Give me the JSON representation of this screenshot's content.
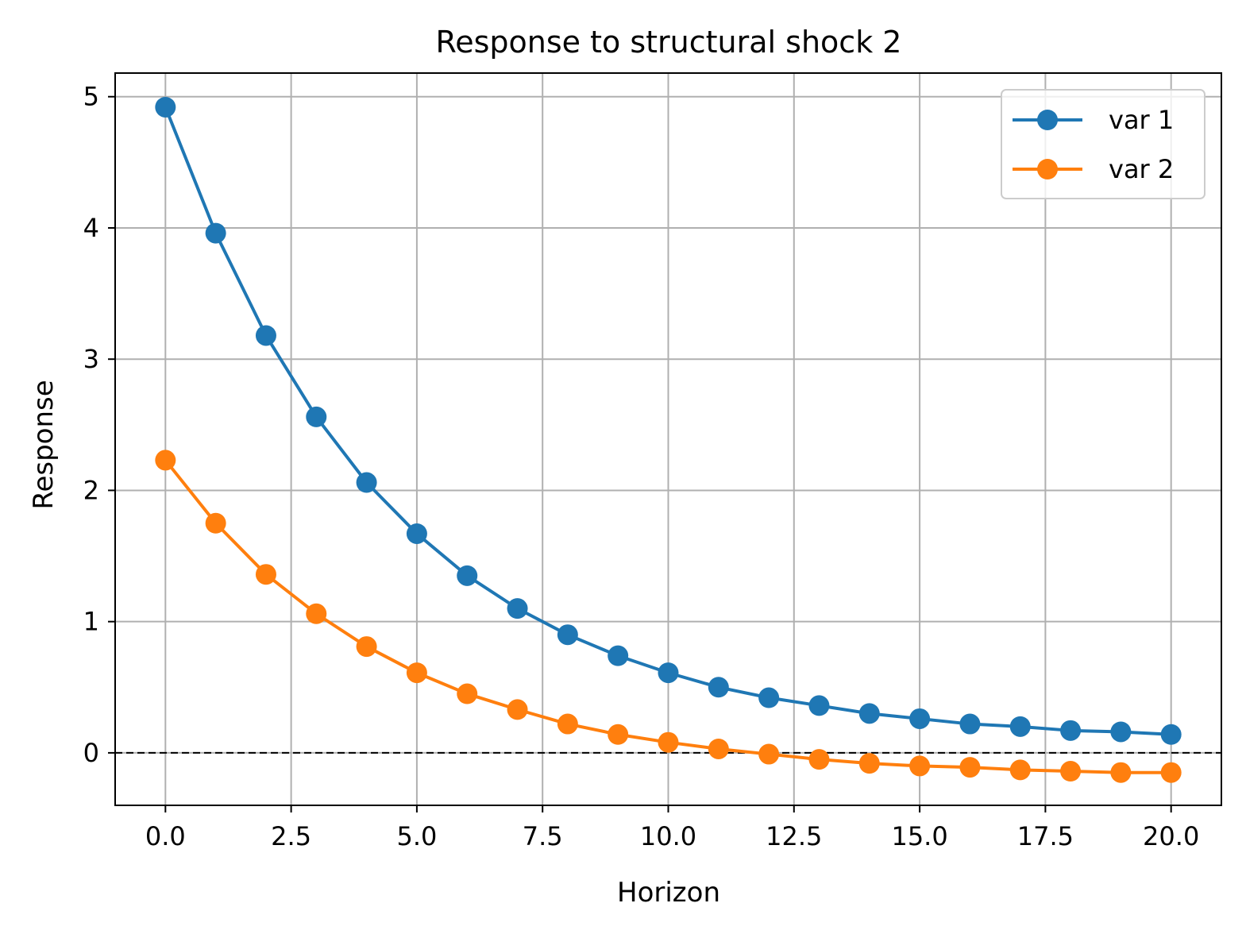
{
  "chart_data": {
    "type": "line",
    "title": "Response to structural shock 2",
    "xlabel": "Horizon",
    "ylabel": "Response",
    "xlim": [
      -1.0,
      21.0
    ],
    "ylim": [
      -0.4,
      5.18
    ],
    "xticks": [
      0.0,
      2.5,
      5.0,
      7.5,
      10.0,
      12.5,
      15.0,
      17.5,
      20.0
    ],
    "xtick_labels": [
      "0.0",
      "2.5",
      "5.0",
      "7.5",
      "10.0",
      "12.5",
      "15.0",
      "17.5",
      "20.0"
    ],
    "yticks": [
      0,
      1,
      2,
      3,
      4,
      5
    ],
    "ytick_labels": [
      "0",
      "1",
      "2",
      "3",
      "4",
      "5"
    ],
    "grid": true,
    "legend_position": "top-right",
    "reference_line": {
      "y": 0,
      "style": "dashed",
      "color": "#000000"
    },
    "x": [
      0,
      1,
      2,
      3,
      4,
      5,
      6,
      7,
      8,
      9,
      10,
      11,
      12,
      13,
      14,
      15,
      16,
      17,
      18,
      19,
      20
    ],
    "series": [
      {
        "name": "var 1",
        "color": "#1f77b4",
        "values": [
          4.92,
          3.96,
          3.18,
          2.56,
          2.06,
          1.67,
          1.35,
          1.1,
          0.9,
          0.74,
          0.61,
          0.5,
          0.42,
          0.36,
          0.3,
          0.26,
          0.22,
          0.2,
          0.17,
          0.16,
          0.14
        ]
      },
      {
        "name": "var 2",
        "color": "#ff7f0e",
        "values": [
          2.23,
          1.75,
          1.36,
          1.06,
          0.81,
          0.61,
          0.45,
          0.33,
          0.22,
          0.14,
          0.08,
          0.03,
          -0.01,
          -0.05,
          -0.08,
          -0.1,
          -0.11,
          -0.13,
          -0.14,
          -0.15,
          -0.15
        ]
      }
    ]
  }
}
